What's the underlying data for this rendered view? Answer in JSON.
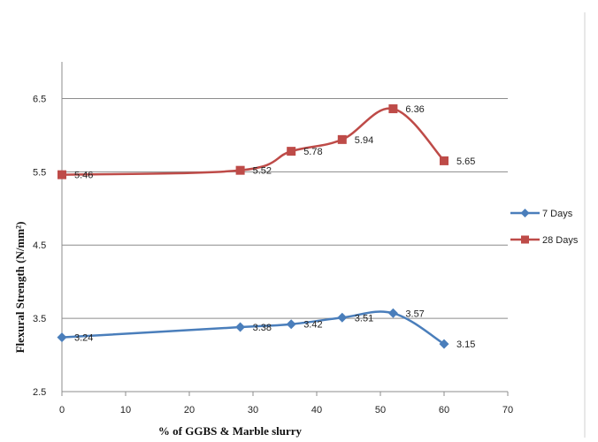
{
  "chart_data": {
    "type": "line",
    "xlabel": "% of GGBS & Marble slurry",
    "ylabel": "Flexural Strength (N/mm²)",
    "xlim": [
      0,
      70
    ],
    "ylim": [
      2.5,
      7.0
    ],
    "x_ticks": [
      "0",
      "10",
      "20",
      "30",
      "40",
      "50",
      "60",
      "70"
    ],
    "y_ticks": [
      "2.5",
      "3.5",
      "4.5",
      "5.5",
      "6.5"
    ],
    "grid": "horizontal",
    "legend_position": "right",
    "series": [
      {
        "name": "7 Days",
        "color": "#4a7ebb",
        "marker": "diamond",
        "x": [
          0,
          28,
          36,
          44,
          52,
          60
        ],
        "y": [
          3.24,
          3.38,
          3.42,
          3.51,
          3.57,
          3.15
        ],
        "labels": [
          "3.24",
          "3.38",
          "3.42",
          "3.51",
          "3.57",
          "3.15"
        ]
      },
      {
        "name": "28 Days",
        "color": "#be4b48",
        "marker": "square",
        "x": [
          0,
          28,
          36,
          44,
          52,
          60
        ],
        "y": [
          5.46,
          5.52,
          5.78,
          5.94,
          6.36,
          5.65
        ],
        "labels": [
          "5.46",
          "5.52",
          "5.78",
          "5.94",
          "6.36",
          "5.65"
        ]
      }
    ]
  }
}
